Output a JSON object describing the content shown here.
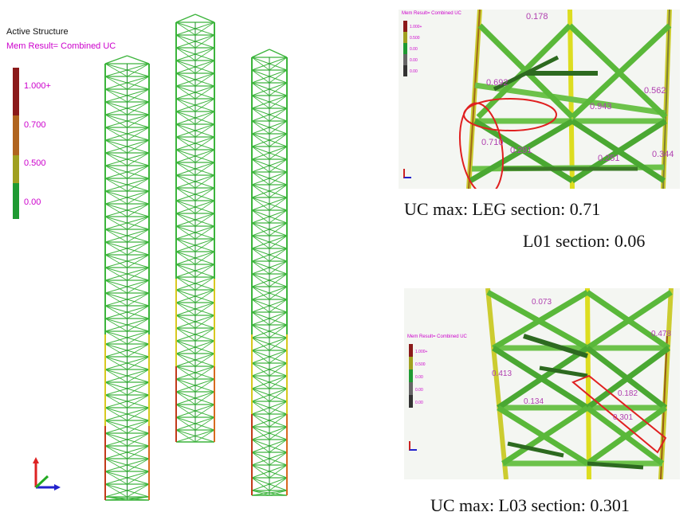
{
  "header": {
    "title": "Active Structure",
    "result": "Mem Result= Combined UC"
  },
  "legend": {
    "labels": [
      "1.000+",
      "0.700",
      "0.500",
      "0.00"
    ],
    "colors": {
      "red": "#8b1a1a",
      "orange": "#b0641e",
      "olive": "#a0a020",
      "green": "#1f9a32"
    }
  },
  "detail_top": {
    "title": "Mem Result= Combined UC",
    "legend": [
      "1.000+",
      "0.500",
      "0.00",
      "0.00",
      "0.00"
    ],
    "member_labels": [
      "0.178",
      "0.692",
      "0.710",
      "0.291",
      "0.943",
      "0.251",
      "0.562",
      "0.344"
    ],
    "caption_line1": "UC max: LEG section: 0.71",
    "caption_line2": "L01 section: 0.06"
  },
  "detail_bottom": {
    "title": "Mem Result= Combined UC",
    "legend": [
      "1.000+",
      "0.500",
      "0.00",
      "0.00",
      "0.00"
    ],
    "member_labels": [
      "0.073",
      "0.413",
      "0.134",
      "0.301",
      "0.182",
      "0.478"
    ],
    "caption": "UC max: L03 section: 0.301"
  }
}
